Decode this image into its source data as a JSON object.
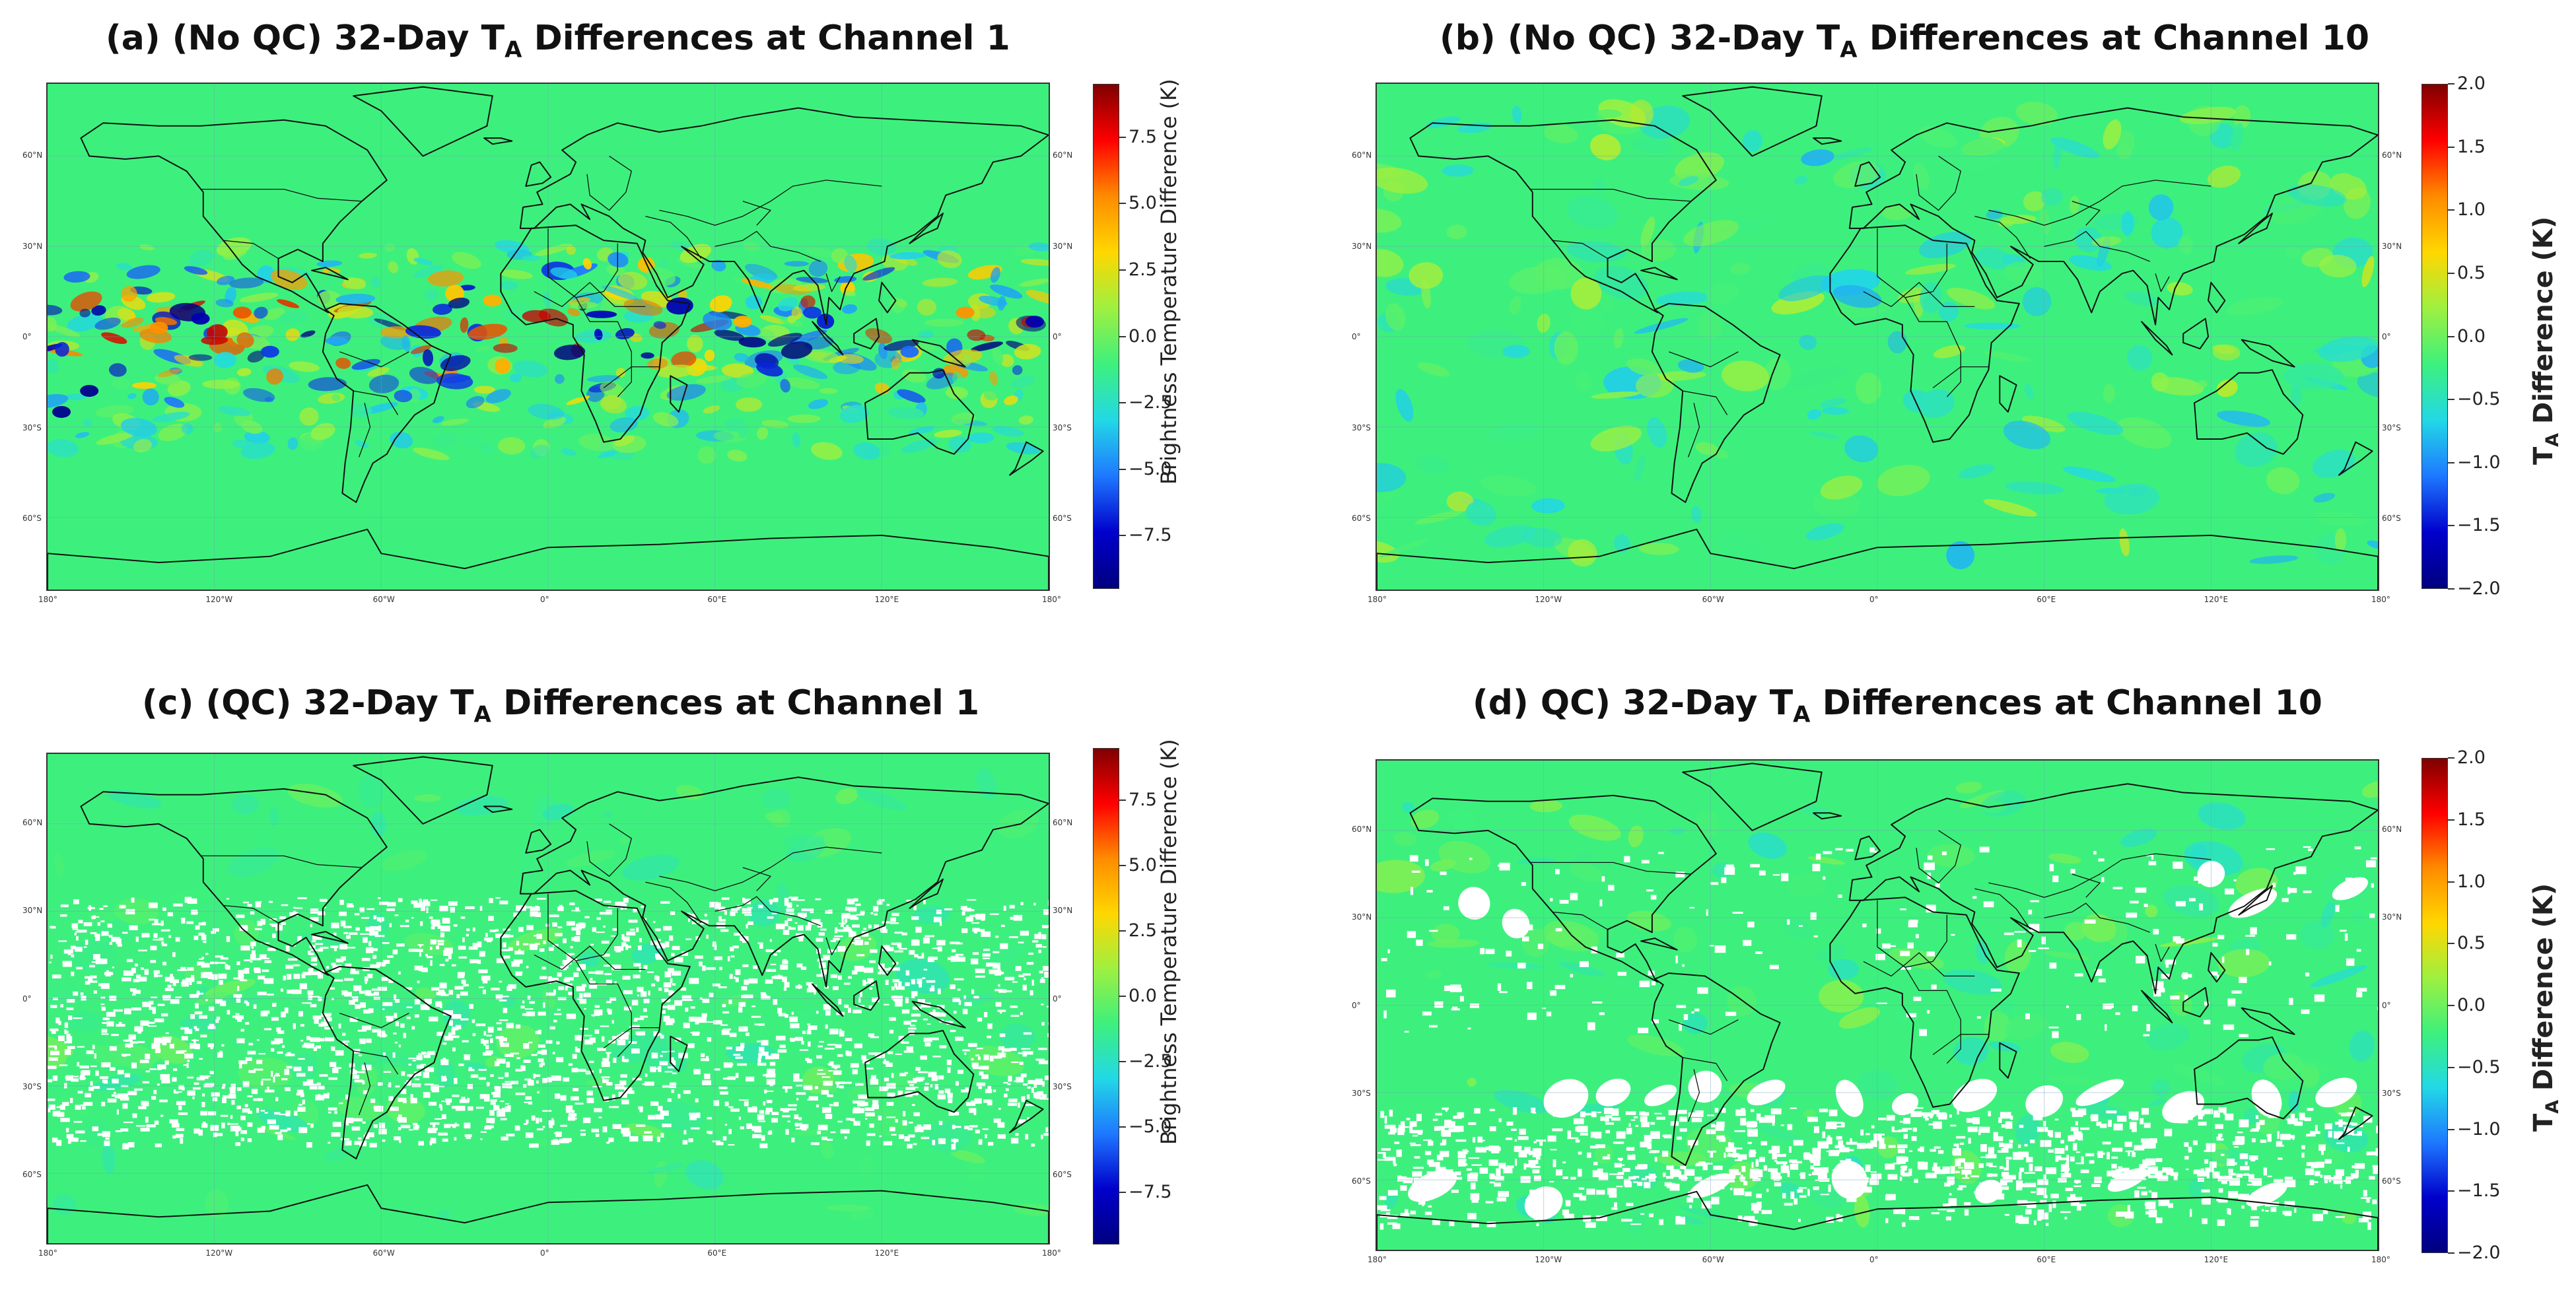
{
  "chart_data": [
    {
      "panel": "a",
      "type": "heatmap",
      "title": {
        "prefix": "(a) (No QC) 32-Day T",
        "sub": "A",
        "suffix": " Differences at Channel 1"
      },
      "colorbar": {
        "label": "Brightness Temperature Difference (K)",
        "ticks": [
          "7.5",
          "5.0",
          "2.5",
          "0.0",
          "−2.5",
          "−5.0",
          "−7.5"
        ],
        "range": [
          -9.5,
          9.5
        ]
      },
      "lon_labels": [
        "180°",
        "120°W",
        "60°W",
        "0°",
        "60°E",
        "120°E",
        "180°"
      ],
      "lat_labels": [
        "60°N",
        "30°N",
        "0°",
        "30°S",
        "60°S"
      ]
    },
    {
      "panel": "b",
      "type": "heatmap",
      "title": {
        "prefix": "(b) (No QC) 32-Day T",
        "sub": "A",
        "suffix": " Differences at Channel 10"
      },
      "colorbar": {
        "label_prefix": "T",
        "label_sub": "A",
        "label_suffix": " Difference (K)",
        "ticks": [
          "2.0",
          "1.5",
          "1.0",
          "0.5",
          "0.0",
          "−0.5",
          "−1.0",
          "−1.5",
          "−2.0"
        ],
        "range": [
          -2.0,
          2.0
        ]
      },
      "lon_labels": [
        "180°",
        "120°W",
        "60°W",
        "0°",
        "60°E",
        "120°E",
        "180°"
      ],
      "lat_labels": [
        "60°N",
        "30°N",
        "0°",
        "30°S",
        "60°S"
      ]
    },
    {
      "panel": "c",
      "type": "heatmap",
      "title": {
        "prefix": "(c) (QC) 32-Day T",
        "sub": "A",
        "suffix": " Differences at Channel 1"
      },
      "colorbar": {
        "label": "Brightness Temperature Difference (K)",
        "ticks": [
          "7.5",
          "5.0",
          "2.5",
          "0.0",
          "−2.5",
          "−5.0",
          "−7.5"
        ],
        "range": [
          -9.5,
          9.5
        ]
      },
      "lon_labels": [
        "180°",
        "120°W",
        "60°W",
        "0°",
        "60°E",
        "120°E",
        "180°"
      ],
      "lat_labels": [
        "60°N",
        "30°N",
        "0°",
        "30°S",
        "60°S"
      ]
    },
    {
      "panel": "d",
      "type": "heatmap",
      "title": {
        "prefix": "(d) QC) 32-Day T",
        "sub": "A",
        "suffix": " Differences at Channel 10"
      },
      "colorbar": {
        "label_prefix": "T",
        "label_sub": "A",
        "label_suffix": " Difference (K)",
        "ticks": [
          "2.0",
          "1.5",
          "1.0",
          "0.5",
          "0.0",
          "−0.5",
          "−1.0",
          "−1.5",
          "−2.0"
        ],
        "range": [
          -2.0,
          2.0
        ]
      },
      "lon_labels": [
        "180°",
        "120°W",
        "60°W",
        "0°",
        "60°E",
        "120°E",
        "180°"
      ],
      "lat_labels": [
        "60°N",
        "30°N",
        "0°",
        "30°S",
        "60°S"
      ]
    }
  ],
  "colors": {
    "background": "#3df07d",
    "coast": "#111111",
    "masked": "#ffffff",
    "grid": "#6f9fb5"
  }
}
